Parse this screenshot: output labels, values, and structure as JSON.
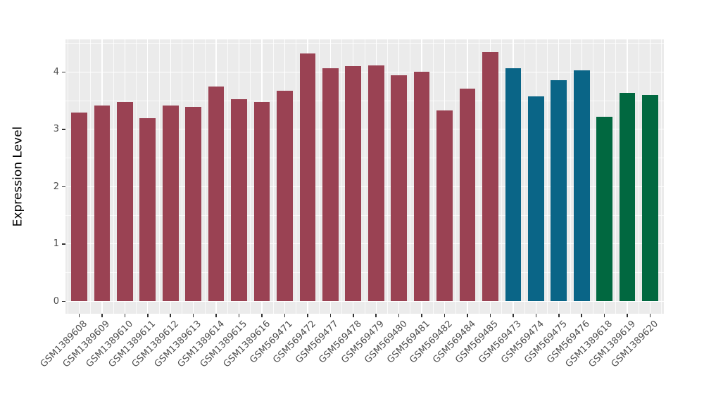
{
  "chart_data": {
    "type": "bar",
    "title": "",
    "xlabel": "",
    "ylabel": "Expression Level",
    "categories": [
      "GSM1389608",
      "GSM1389609",
      "GSM1389610",
      "GSM1389611",
      "GSM1389612",
      "GSM1389613",
      "GSM1389614",
      "GSM1389615",
      "GSM1389616",
      "GSM569471",
      "GSM569472",
      "GSM569477",
      "GSM569478",
      "GSM569479",
      "GSM569480",
      "GSM569481",
      "GSM569482",
      "GSM569484",
      "GSM569485",
      "GSM569473",
      "GSM569474",
      "GSM569475",
      "GSM569476",
      "GSM1389618",
      "GSM1389619",
      "GSM1389620"
    ],
    "values": [
      3.29,
      3.42,
      3.48,
      3.19,
      3.42,
      3.39,
      3.74,
      3.52,
      3.47,
      3.67,
      4.32,
      4.06,
      4.1,
      4.12,
      3.94,
      4.0,
      3.33,
      3.71,
      4.35,
      4.06,
      3.57,
      3.86,
      4.03,
      3.22,
      3.63,
      3.6
    ],
    "groups": [
      {
        "name": "group-maroon",
        "color": "#9A4253",
        "count": 19
      },
      {
        "name": "group-teal",
        "color": "#0A6587",
        "count": 4
      },
      {
        "name": "group-green",
        "color": "#016840",
        "count": 3
      }
    ],
    "yticks": [
      "0",
      "1",
      "2",
      "3",
      "4"
    ],
    "ylim": [
      -0.22,
      4.59
    ],
    "bar_width_fraction": 0.7,
    "grid": true,
    "legend": "none",
    "x_label_angle_deg": 45,
    "styles": {
      "panel_bg": "#EBEBEB",
      "grid_major_color": "#FFFFFF",
      "grid_minor_color": "#FFFFFF",
      "axis_text_color": "#4D4D4D",
      "axis_title_color": "#000000",
      "tick_mark_color": "#333333"
    }
  }
}
